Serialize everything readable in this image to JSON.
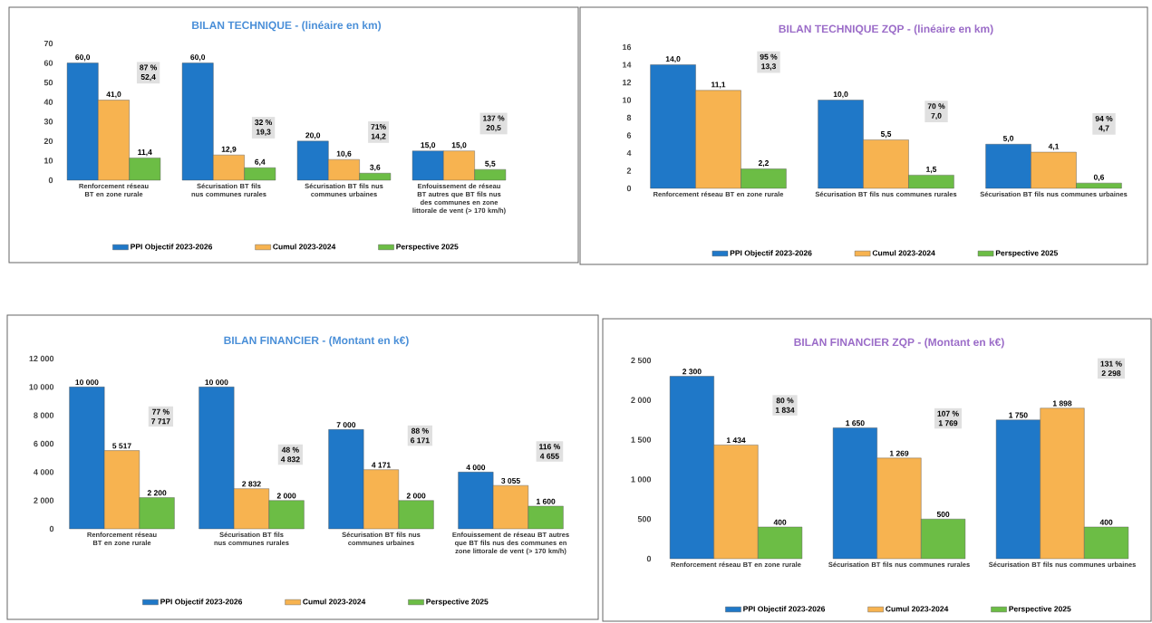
{
  "chart_data": [
    {
      "type": "bar",
      "title": "BILAN TECHNIQUE - (linéaire en km)",
      "categories": [
        "Renforcement réseau BT en zone rurale",
        "Sécurisation BT fils nus communes rurales",
        "Sécurisation BT fils nus communes urbaines",
        "Enfouissement de réseau BT autres que BT fils nus des communes en zone littorale de vent (> 170 km/h)"
      ],
      "series": [
        {
          "name": "PPI Objectif 2023-2026",
          "color": "#1f78c8",
          "values": [
            60,
            60,
            20,
            15
          ],
          "value_labels": [
            "60,0",
            "60,0",
            "20,0",
            "15,0"
          ]
        },
        {
          "name": "Cumul 2023-2024",
          "color": "#f7b350",
          "values": [
            41,
            12.9,
            10.6,
            15
          ],
          "value_labels": [
            "41,0",
            "12,9",
            "10,6",
            "15,0"
          ]
        },
        {
          "name": "Perspective 2025",
          "color": "#6cbd45",
          "values": [
            11.4,
            6.4,
            3.6,
            5.5
          ],
          "value_labels": [
            "11,4",
            "6,4",
            "3,6",
            "5,5"
          ]
        }
      ],
      "ylim": [
        0,
        70
      ],
      "yticks": [
        0,
        10,
        20,
        30,
        40,
        50,
        60,
        70
      ],
      "legend": "bottom",
      "annotations": [
        "87 %",
        "52,4",
        "32 %",
        "19,3",
        "71%",
        "14,2",
        "137 %",
        "20,5"
      ]
    },
    {
      "type": "bar",
      "title": "BILAN TECHNIQUE ZQP - (linéaire en km)",
      "categories": [
        "Renforcement réseau BT en zone rurale",
        "Sécurisation BT fils nus communes rurales",
        "Sécurisation BT fils nus communes urbaines"
      ],
      "series": [
        {
          "name": "PPI Objectif 2023-2026",
          "color": "#1f78c8",
          "values": [
            14,
            10,
            5
          ],
          "value_labels": [
            "14,0",
            "10,0",
            "5,0"
          ]
        },
        {
          "name": "Cumul 2023-2024",
          "color": "#f7b350",
          "values": [
            11.1,
            5.5,
            4.1
          ],
          "value_labels": [
            "11,1",
            "5,5",
            "4,1"
          ]
        },
        {
          "name": "Perspective 2025",
          "color": "#6cbd45",
          "values": [
            2.2,
            1.5,
            0.6
          ],
          "value_labels": [
            "2,2",
            "1,5",
            "0,6"
          ]
        }
      ],
      "ylim": [
        0,
        16
      ],
      "yticks": [
        0,
        2,
        4,
        6,
        8,
        10,
        12,
        14,
        16
      ],
      "legend": "bottom",
      "annotations": [
        "95 %",
        "13,3",
        "70 %",
        "7,0",
        "94 %",
        "4,7"
      ]
    },
    {
      "type": "bar",
      "title": "BILAN FINANCIER - (Montant en k€)",
      "categories": [
        "Renforcement réseau BT en zone rurale",
        "Sécurisation BT fils nus communes rurales",
        "Sécurisation BT fils nus communes urbaines",
        "Enfouissement de réseau BT autres que BT fils nus des communes en zone littorale de vent (> 170 km/h)"
      ],
      "series": [
        {
          "name": "PPI Objectif 2023-2026",
          "color": "#1f78c8",
          "values": [
            10000,
            10000,
            7000,
            4000
          ],
          "value_labels": [
            "10 000",
            "10 000",
            "7 000",
            "4 000"
          ]
        },
        {
          "name": "Cumul 2023-2024",
          "color": "#f7b350",
          "values": [
            5517,
            2832,
            4171,
            3055
          ],
          "value_labels": [
            "5 517",
            "2 832",
            "4 171",
            "3 055"
          ]
        },
        {
          "name": "Perspective 2025",
          "color": "#6cbd45",
          "values": [
            2200,
            2000,
            2000,
            1600
          ],
          "value_labels": [
            "2 200",
            "2 000",
            "2 000",
            "1 600"
          ]
        }
      ],
      "ylim": [
        0,
        12000
      ],
      "yticks": [
        0,
        {
          "value": 2000,
          "label": "2 000"
        },
        {
          "value": 4000,
          "label": "4 000"
        },
        {
          "value": 6000,
          "label": "6 000"
        },
        {
          "value": 8000,
          "label": "8 000"
        },
        {
          "value": 10000,
          "label": "10 000"
        },
        {
          "value": 12000,
          "label": "12 000"
        }
      ],
      "legend": "bottom",
      "annotations": [
        "77 %",
        "7 717",
        "48 %",
        "4 832",
        "88 %",
        "6 171",
        "116 %",
        "4 655"
      ]
    },
    {
      "type": "bar",
      "title": "BILAN FINANCIER ZQP - (Montant en k€)",
      "categories": [
        "Renforcement réseau BT en zone rurale",
        "Sécurisation BT fils nus communes rurales",
        "Sécurisation BT fils nus communes urbaines"
      ],
      "series": [
        {
          "name": "PPI Objectif 2023-2026",
          "color": "#1f78c8",
          "values": [
            2300,
            1650,
            1750
          ],
          "value_labels": [
            "2 300",
            "1 650",
            "1 750"
          ]
        },
        {
          "name": "Cumul 2023-2024",
          "color": "#f7b350",
          "values": [
            1434,
            1269,
            1898
          ],
          "value_labels": [
            "1 434",
            "1 269",
            "1 898"
          ]
        },
        {
          "name": "Perspective 2025",
          "color": "#6cbd45",
          "values": [
            400,
            500,
            400
          ],
          "value_labels": [
            "400",
            "500",
            "400"
          ]
        }
      ],
      "ylim": [
        0,
        2500
      ],
      "yticks": [
        0,
        500,
        {
          "value": 1000,
          "label": "1 000"
        },
        {
          "value": 1500,
          "label": "1 500"
        },
        {
          "value": 2000,
          "label": "2 000"
        },
        {
          "value": 2500,
          "label": "2 500"
        }
      ],
      "legend": "bottom",
      "annotations": [
        "80 %",
        "1 834",
        "107 %",
        "1 769",
        "131 %",
        "2 298"
      ]
    }
  ]
}
